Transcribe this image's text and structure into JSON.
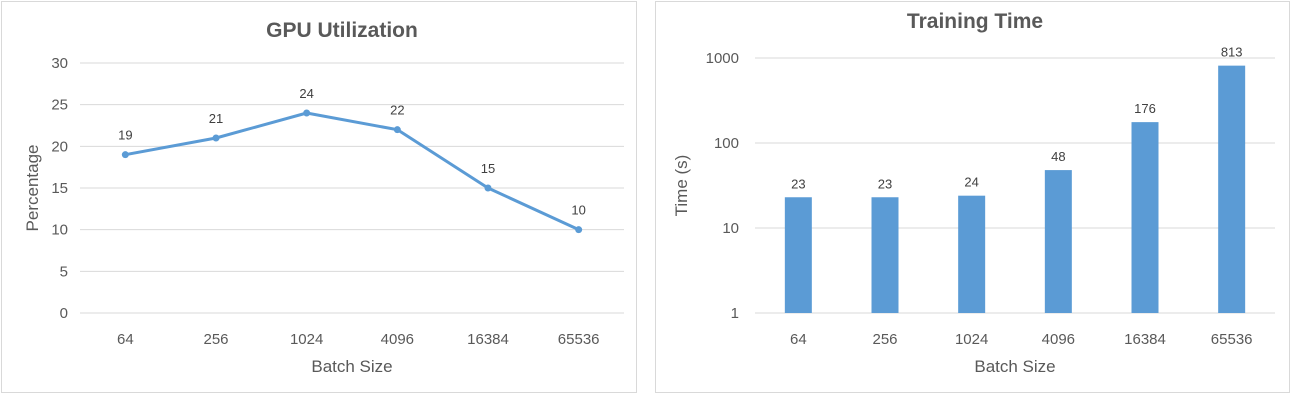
{
  "chart_data": [
    {
      "type": "line",
      "title": "GPU Utilization",
      "xlabel": "Batch Size",
      "ylabel": "Percentage",
      "categories": [
        "64",
        "256",
        "1024",
        "4096",
        "16384",
        "65536"
      ],
      "values": [
        19,
        21,
        24,
        22,
        15,
        10
      ],
      "ylim": [
        0,
        30
      ],
      "yticks": [
        0,
        5,
        10,
        15,
        20,
        25,
        30
      ],
      "grid": true,
      "legend": "none",
      "color": "#5b9bd5"
    },
    {
      "type": "bar",
      "title": "Training Time",
      "xlabel": "Batch Size",
      "ylabel": "Time (s)",
      "categories": [
        "64",
        "256",
        "1024",
        "4096",
        "16384",
        "65536"
      ],
      "values": [
        23,
        23,
        24,
        48,
        176,
        813
      ],
      "yscale": "log",
      "ylim": [
        1,
        1000
      ],
      "yticks": [
        1,
        10,
        100,
        1000
      ],
      "grid": true,
      "legend": "none",
      "color": "#5b9bd5"
    }
  ]
}
